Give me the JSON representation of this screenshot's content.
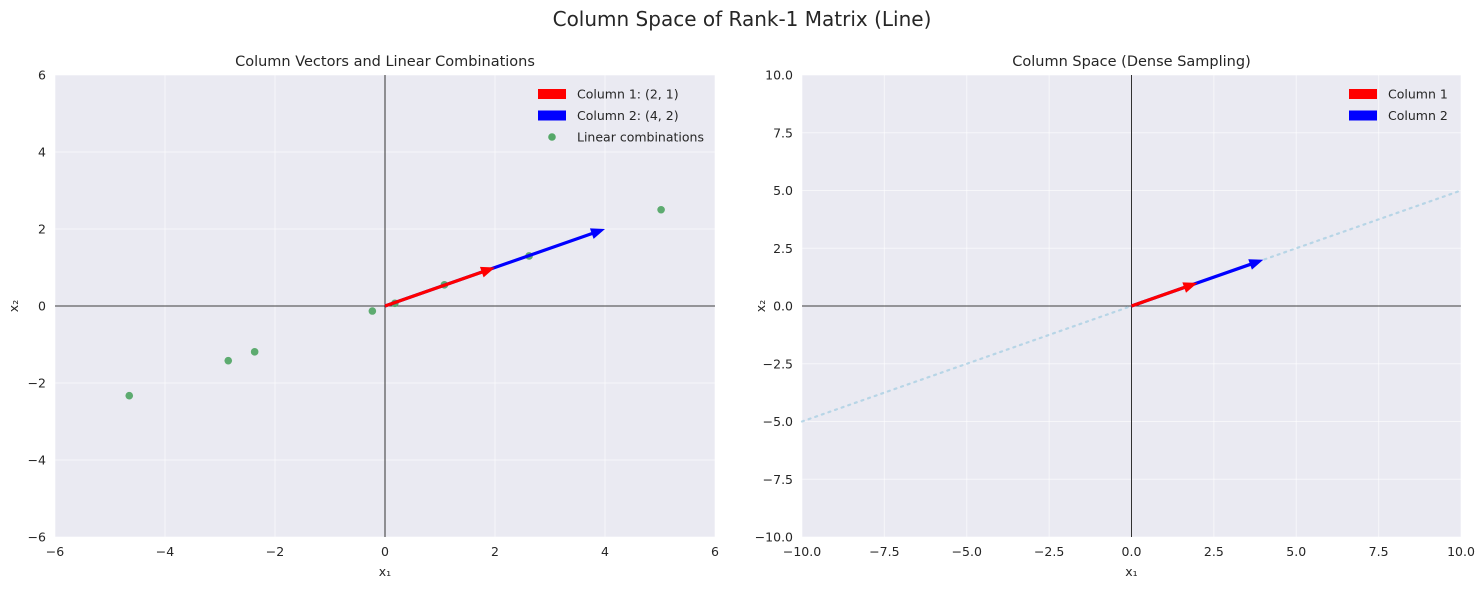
{
  "figure": {
    "title": "Column Space of Rank-1 Matrix (Line)",
    "background": "#ffffff"
  },
  "colors": {
    "axes_bg": "#eaeaf2",
    "grid": "#ffffff",
    "column1": "#ff0000",
    "column2": "#0000ff",
    "combos": "#55a868",
    "span_line": "#a6cee3",
    "axis_line": "#000000",
    "text": "#262626"
  },
  "chart_data": [
    {
      "type": "scatter",
      "title": "Column Vectors and Linear Combinations",
      "xlabel": "x₁",
      "ylabel": "x₂",
      "xlim": [
        -6,
        6
      ],
      "ylim": [
        -6,
        6
      ],
      "xticks": [
        -6,
        -4,
        -2,
        0,
        2,
        4,
        6
      ],
      "yticks": [
        -6,
        -4,
        -2,
        0,
        2,
        4,
        6
      ],
      "xtick_labels": [
        "−6",
        "−4",
        "−2",
        "0",
        "2",
        "4",
        "6"
      ],
      "ytick_labels": [
        "−6",
        "−4",
        "−2",
        "0",
        "2",
        "4",
        "6"
      ],
      "grid": true,
      "legend_position": "top-right",
      "vectors": [
        {
          "name": "Column 1: (2, 1)",
          "start": [
            0,
            0
          ],
          "end": [
            2,
            1
          ],
          "color": "#ff0000"
        },
        {
          "name": "Column 2: (4, 2)",
          "start": [
            0,
            0
          ],
          "end": [
            4,
            2
          ],
          "color": "#0000ff"
        }
      ],
      "points": {
        "name": "Linear combinations",
        "color": "#55a868",
        "x": [
          -4.65,
          -2.85,
          -2.37,
          -0.23,
          0.18,
          1.08,
          2.62,
          5.02
        ],
        "y": [
          -2.33,
          -1.42,
          -1.19,
          -0.13,
          0.07,
          0.55,
          1.3,
          2.5
        ]
      }
    },
    {
      "type": "line",
      "title": "Column Space (Dense Sampling)",
      "xlabel": "x₁",
      "ylabel": "x₂",
      "xlim": [
        -10,
        10
      ],
      "ylim": [
        -10,
        10
      ],
      "xticks": [
        -10,
        -7.5,
        -5,
        -2.5,
        0,
        2.5,
        5,
        7.5,
        10
      ],
      "yticks": [
        -10,
        -7.5,
        -5,
        -2.5,
        0,
        2.5,
        5,
        7.5,
        10
      ],
      "xtick_labels": [
        "−10.0",
        "−7.5",
        "−5.0",
        "−2.5",
        "0.0",
        "2.5",
        "5.0",
        "7.5",
        "10.0"
      ],
      "ytick_labels": [
        "−10.0",
        "−7.5",
        "−5.0",
        "−2.5",
        "0.0",
        "2.5",
        "5.0",
        "7.5",
        "10.0"
      ],
      "grid": true,
      "legend_position": "top-right",
      "vectors": [
        {
          "name": "Column 1",
          "start": [
            0,
            0
          ],
          "end": [
            2,
            1
          ],
          "color": "#ff0000"
        },
        {
          "name": "Column 2",
          "start": [
            0,
            0
          ],
          "end": [
            4,
            2
          ],
          "color": "#0000ff"
        }
      ],
      "span_line": {
        "x": [
          -10,
          10
        ],
        "y": [
          -5,
          5
        ],
        "style": "dotted",
        "color": "#a6cee3"
      }
    }
  ]
}
